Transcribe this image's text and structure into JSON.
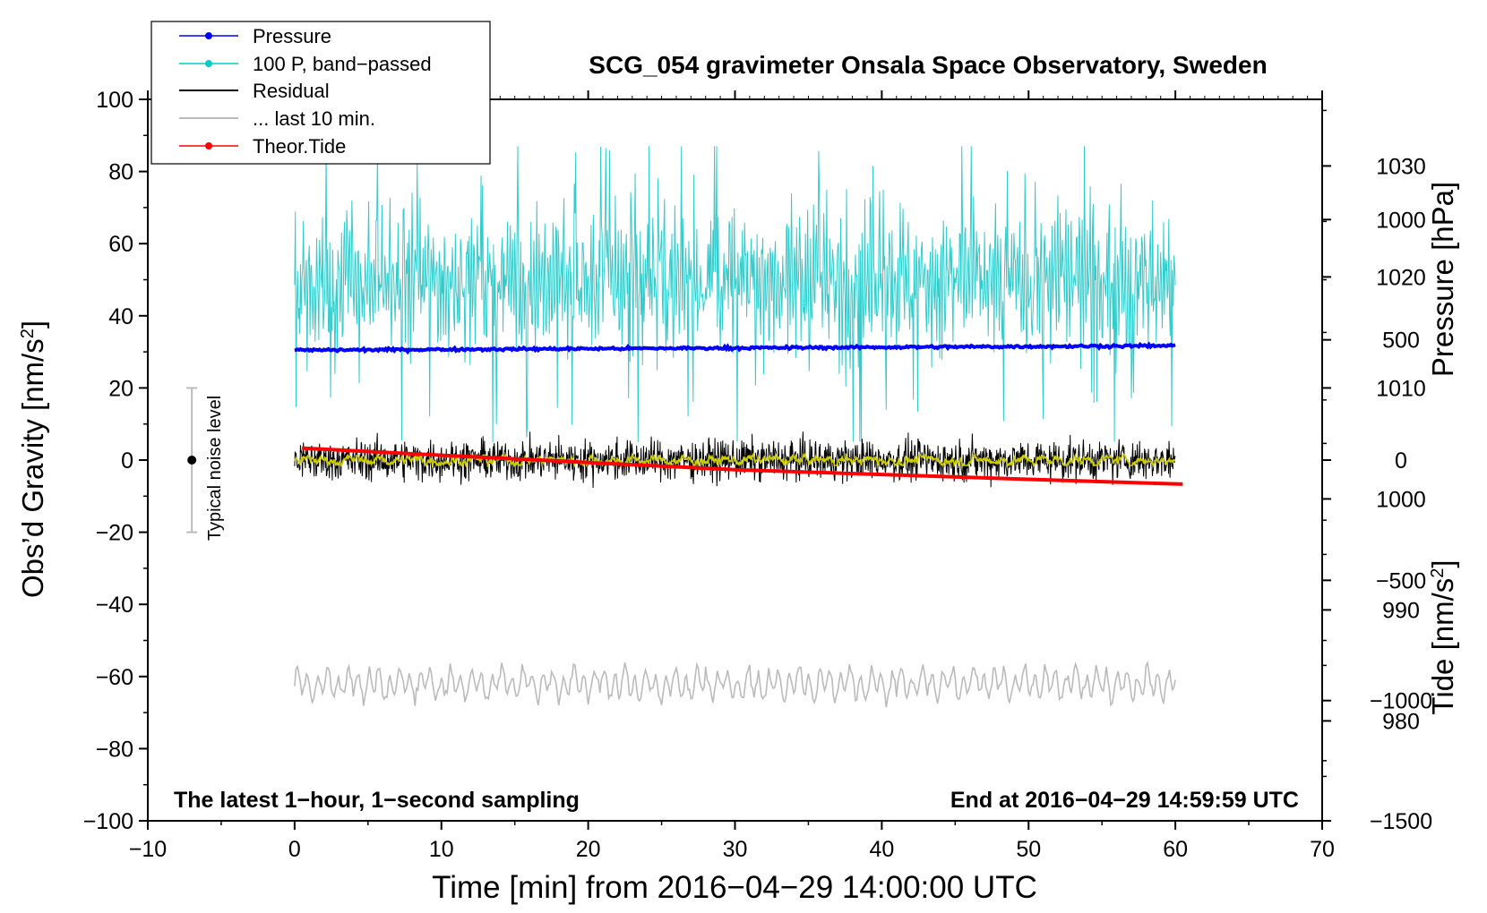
{
  "chart_data": {
    "type": "line",
    "title": "SCG_054 gravimeter Onsala Space Observatory, Sweden",
    "xlabel": "Time [min] from 2016−04−29 14:00:00 UTC",
    "ylabel_left": "Obs’d Gravity [nm/s",
    "ylabel_left_sup": "2",
    "ylabel_left_close": "]",
    "ylabel_pressure": "Pressure [hPa]",
    "ylabel_tide": "Tide [nm/s",
    "ylabel_tide_sup": "2",
    "ylabel_tide_close": "]",
    "xlim": [
      -10,
      70
    ],
    "ylim_left": [
      -100,
      100
    ],
    "ylim_pressure": [
      971,
      1036
    ],
    "ylim_tide": [
      -1500,
      1500
    ],
    "x_ticks": [
      -10,
      0,
      10,
      20,
      30,
      40,
      50,
      60,
      70
    ],
    "y_ticks_left": [
      -100,
      -80,
      -60,
      -40,
      -20,
      0,
      20,
      40,
      60,
      80,
      100
    ],
    "y_ticks_pressure": [
      980,
      990,
      1000,
      1010,
      1020,
      1030
    ],
    "y_ticks_tide": [
      -1500,
      -1000,
      -500,
      0,
      500,
      1000
    ],
    "x_tick_labels": [
      "−10",
      "0",
      "10",
      "20",
      "30",
      "40",
      "50",
      "60",
      "70"
    ],
    "y_tick_labels_left": [
      "−100",
      "−80",
      "−60",
      "−40",
      "−20",
      "0",
      "20",
      "40",
      "60",
      "80",
      "100"
    ],
    "y_tick_labels_pressure": [
      "980",
      "990",
      "1000",
      "1010",
      "1020",
      "1030"
    ],
    "y_tick_labels_tide": [
      "−1500",
      "−1000",
      "−500",
      "0",
      "500",
      "1000"
    ],
    "annotation_left": "The latest 1−hour, 1−second sampling",
    "annotation_right": "End at 2016−04−29 14:59:59 UTC",
    "noise_label": "Typical noise level",
    "noise_bar": {
      "x": -7,
      "center": 0,
      "half_range": 20
    },
    "legend": {
      "position": "top-left",
      "entries": [
        {
          "label": "Pressure",
          "color": "#0000ff",
          "marker": true
        },
        {
          "label": "100 P, band−passed",
          "color": "#00cccc",
          "marker": true
        },
        {
          "label": "Residual",
          "color": "#000000",
          "marker": false
        },
        {
          "label": "... last 10 min.",
          "color": "#bbbbbb",
          "marker": false
        },
        {
          "label": "Theor.Tide",
          "color": "#ff0000",
          "marker": true
        }
      ]
    },
    "series": [
      {
        "name": "Pressure",
        "axis": "pressure",
        "color": "#0000ff",
        "x_range": [
          0,
          60
        ],
        "value_start": 1013.4,
        "value_end": 1013.8,
        "noise": 0.15
      },
      {
        "name": "100 P, band-passed",
        "axis": "left",
        "color": "#33cccc",
        "x_range": [
          0,
          60
        ],
        "mean": 50,
        "min": 5,
        "max": 87
      },
      {
        "name": "Residual",
        "axis": "left",
        "color": "#000000",
        "x_range": [
          0,
          60
        ],
        "mean": 0,
        "min": -8,
        "max": 8
      },
      {
        "name": "Residual smoothed",
        "axis": "left",
        "color": "#cccc00",
        "x_range": [
          0,
          60
        ],
        "mean": 0,
        "min": -1.5,
        "max": 1.5
      },
      {
        "name": "... last 10 min.",
        "axis": "left",
        "color": "#bbbbbb",
        "x_range": [
          0,
          60
        ],
        "mean": -62,
        "min": -69,
        "max": -53
      },
      {
        "name": "Theor.Tide",
        "axis": "tide",
        "color": "#ff0000",
        "x": [
          0.5,
          10,
          20,
          30,
          40,
          50,
          60.5
        ],
        "values": [
          50,
          20,
          -10,
          -40,
          -60,
          -80,
          -100
        ]
      }
    ]
  }
}
